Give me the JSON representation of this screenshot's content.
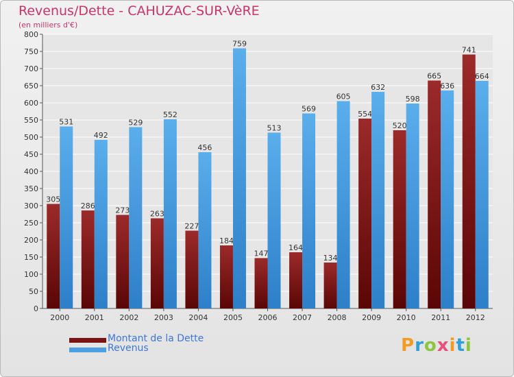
{
  "chart_data": {
    "type": "bar",
    "title": "Revenus/Dette - CAHUZAC-SUR-VèRE",
    "subtitle": "(en milliers d'€)",
    "categories": [
      "2000",
      "2001",
      "2002",
      "2003",
      "2004",
      "2005",
      "2006",
      "2007",
      "2008",
      "2009",
      "2010",
      "2011",
      "2012"
    ],
    "series": [
      {
        "name": "Montant de la Dette",
        "color": "#7a1414",
        "values": [
          305,
          286,
          273,
          263,
          227,
          184,
          147,
          164,
          134,
          554,
          520,
          665,
          741
        ]
      },
      {
        "name": "Revenus",
        "color": "#4c9fe3",
        "values": [
          531,
          492,
          529,
          552,
          456,
          759,
          513,
          569,
          605,
          632,
          598,
          636,
          664
        ]
      }
    ],
    "ylim": [
      0,
      800
    ],
    "yticks": [
      0,
      50,
      100,
      150,
      200,
      250,
      300,
      350,
      400,
      450,
      500,
      550,
      600,
      650,
      700,
      750,
      800
    ],
    "grid": true,
    "legend": "bottom-left",
    "xlabel": "",
    "ylabel": ""
  },
  "logo": {
    "letters": [
      "P",
      "r",
      "o",
      "x",
      "i",
      "t",
      "i"
    ],
    "colors": [
      "#f39a25",
      "#2f9fd8",
      "#8cc63f",
      "#e94e7a",
      "#f39a25",
      "#2f9fd8",
      "#8cc63f"
    ]
  }
}
